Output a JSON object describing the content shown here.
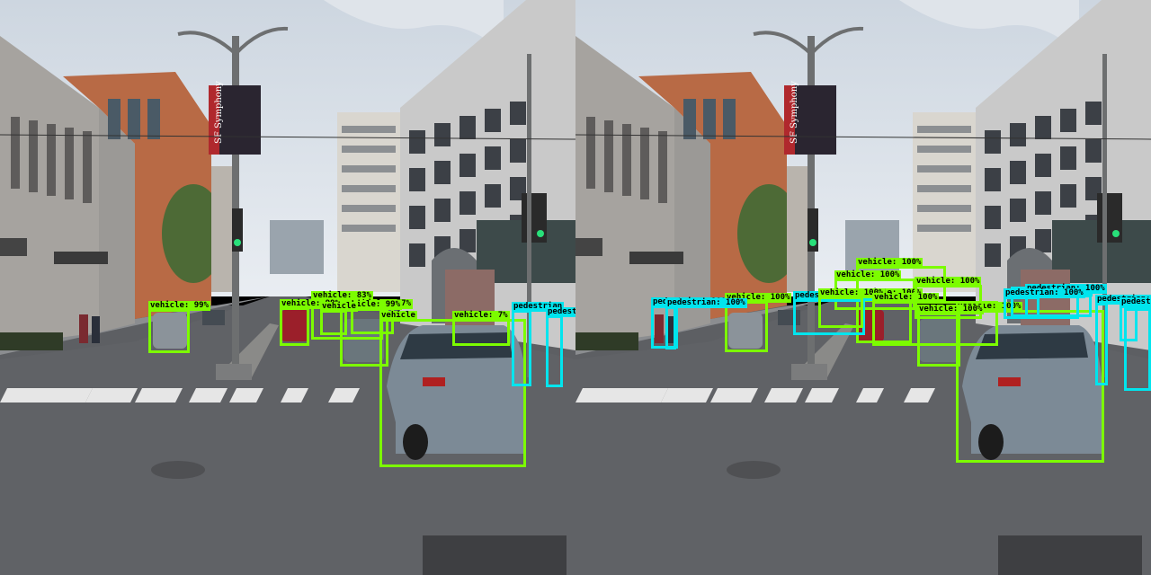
{
  "classes": {
    "vehicle": "vehicle",
    "pedestrian": "pedestrian"
  },
  "colors": {
    "vehicle_box": "#7cfc00",
    "pedestrian_box": "#00e5ee"
  },
  "street_sign": {
    "banner_text": "SF Symphony"
  },
  "panels": [
    {
      "id": "left",
      "detections": [
        {
          "cls": "vehicle",
          "label": "vehicle: 99%"
        },
        {
          "cls": "vehicle",
          "label": "vehicle: 83%"
        },
        {
          "cls": "vehicle",
          "label": "vehicle: 57%"
        },
        {
          "cls": "vehicle",
          "label": "vehicle: 99%"
        },
        {
          "cls": "vehicle",
          "label": "vehicle: 7%"
        },
        {
          "cls": "vehicle",
          "label": "vehicle: 99%"
        },
        {
          "cls": "vehicle",
          "label": "vehicle"
        },
        {
          "cls": "vehicle",
          "label": "vehicle"
        },
        {
          "cls": "pedestrian",
          "label": "pedestrian"
        },
        {
          "cls": "pedestrian",
          "label": "pedestrian"
        }
      ]
    },
    {
      "id": "right",
      "detections": [
        {
          "cls": "pedestrian",
          "label": "pedestrian: 100%"
        },
        {
          "cls": "vehicle",
          "label": "vehicle: 100%"
        },
        {
          "cls": "vehicle",
          "label": "vehicle: 100%"
        },
        {
          "cls": "vehicle",
          "label": "vehicle: 100%"
        },
        {
          "cls": "vehicle",
          "label": "vehicle: 100%"
        },
        {
          "cls": "vehicle",
          "label": "vehicle: 100%"
        },
        {
          "cls": "vehicle",
          "label": "vehicle: 100%"
        },
        {
          "cls": "pedestrian",
          "label": "pedestrian: 100%"
        },
        {
          "cls": "pedestrian",
          "label": "pedestrian: 100%"
        },
        {
          "cls": "pedestrian",
          "label": "pedestrian: 100%"
        },
        {
          "cls": "pedestrian",
          "label": "pedestrian: 100%"
        },
        {
          "cls": "pedestrian",
          "label": "pedestrian: 100%"
        },
        {
          "cls": "vehicle",
          "label": "vehicle: 100%"
        },
        {
          "cls": "vehicle",
          "label": "vehicle: 100%"
        },
        {
          "cls": "vehicle",
          "label": "vehicle: 100%"
        },
        {
          "cls": "pedestrian",
          "label": "pedestrian: 100%"
        },
        {
          "cls": "pedestrian",
          "label": "pedestrian: 100%"
        },
        {
          "cls": "pedestrian",
          "label": "pedestrian: 100%"
        }
      ]
    }
  ]
}
